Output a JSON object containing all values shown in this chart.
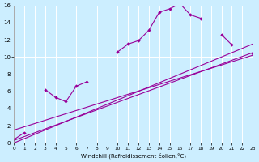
{
  "xlabel": "Windchill (Refroidissement éolien,°C)",
  "line_color": "#990099",
  "bg_color": "#cceeff",
  "grid_color": "#ffffff",
  "xlim": [
    0,
    23
  ],
  "ylim": [
    0,
    16
  ],
  "xticks": [
    0,
    1,
    2,
    3,
    4,
    5,
    6,
    7,
    8,
    9,
    10,
    11,
    12,
    13,
    14,
    15,
    16,
    17,
    18,
    19,
    20,
    21,
    22,
    23
  ],
  "yticks": [
    0,
    2,
    4,
    6,
    8,
    10,
    12,
    14,
    16
  ],
  "line1_x": [
    0,
    1,
    2,
    3,
    4,
    5,
    6,
    7,
    8,
    9,
    10,
    11,
    12,
    13,
    14,
    15,
    16,
    17,
    18,
    19,
    20,
    21,
    22,
    23
  ],
  "line1_y": [
    0.4,
    1.2,
    null,
    6.2,
    5.3,
    4.8,
    6.6,
    7.1,
    null,
    null,
    10.6,
    11.5,
    11.9,
    13.1,
    15.2,
    15.6,
    16.2,
    14.9,
    14.5,
    null,
    12.6,
    11.4,
    null,
    10.4
  ],
  "line2_x": [
    0,
    23
  ],
  "line2_y": [
    0.3,
    10.5
  ],
  "line3_x": [
    0,
    23
  ],
  "line3_y": [
    0.0,
    11.5
  ],
  "line4_x": [
    0,
    23
  ],
  "line4_y": [
    1.5,
    10.2
  ]
}
